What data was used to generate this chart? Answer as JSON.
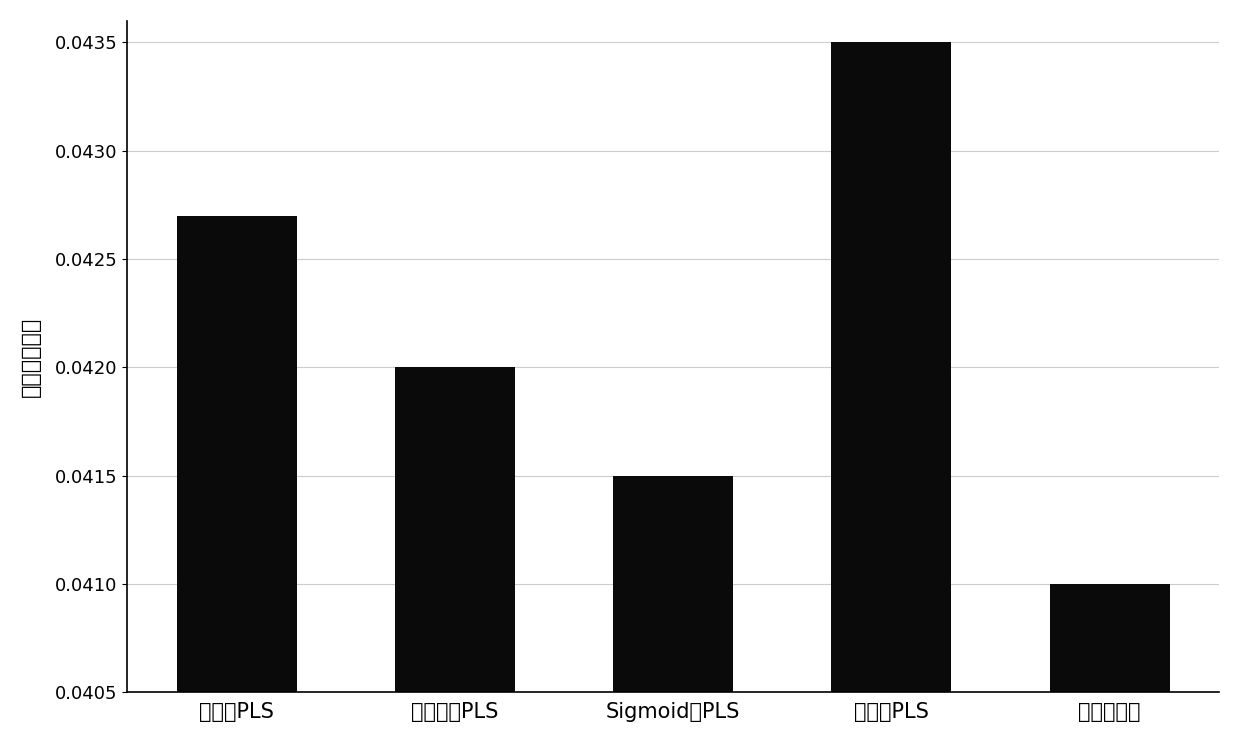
{
  "categories": [
    "高斯核PLS",
    "多项式核PLS",
    "Sigmoid核PLS",
    "线性核PLS",
    "本发明方法"
  ],
  "values": [
    0.0427,
    0.042,
    0.0415,
    0.0435,
    0.041
  ],
  "bar_color": "#0a0a0a",
  "ylabel": "累计均方误差",
  "ylim_min": 0.0405,
  "ylim_max": 0.0436,
  "yticks": [
    0.0405,
    0.041,
    0.0415,
    0.042,
    0.0425,
    0.043,
    0.0435
  ],
  "background_color": "#ffffff",
  "grid_color": "#cccccc",
  "bar_width": 0.55
}
